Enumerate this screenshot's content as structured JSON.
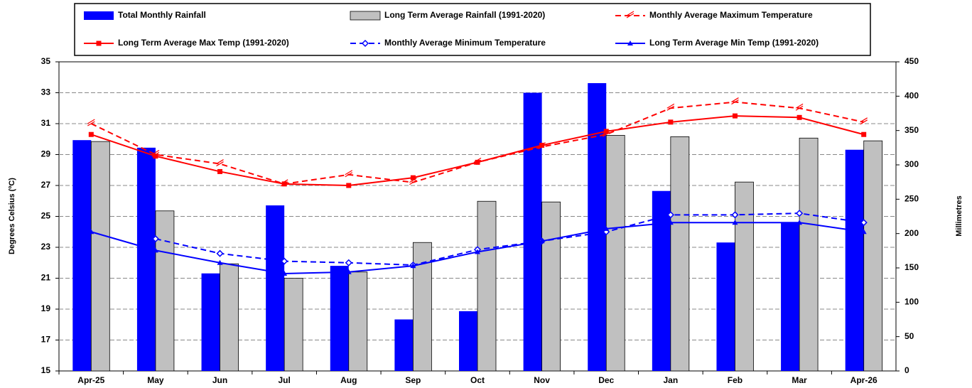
{
  "chart_data": {
    "type": "bar_line",
    "categories": [
      "Apr-25",
      "May",
      "Jun",
      "Jul",
      "Aug",
      "Sep",
      "Oct",
      "Nov",
      "Dec",
      "Jan",
      "Feb",
      "Mar",
      "Apr-26"
    ],
    "y_label": "Degrees Celsius (ºC)",
    "y2_label": "Millimetres",
    "ylim": [
      15,
      35
    ],
    "yticks": [
      15,
      17,
      19,
      21,
      23,
      25,
      27,
      29,
      31,
      33,
      35
    ],
    "y2lim": [
      0,
      450
    ],
    "y2ticks": [
      0,
      50,
      100,
      150,
      200,
      250,
      300,
      350,
      400,
      450
    ],
    "grid": true,
    "series": [
      {
        "name": "Total Monthly Rainfall",
        "kind": "bar",
        "axis": "y2",
        "color": "#0000ff",
        "values": [
          336,
          325,
          142,
          241,
          153,
          75,
          87,
          405,
          419,
          262,
          187,
          216,
          322
        ]
      },
      {
        "name": "Long Term Average Rainfall (1991-2020)",
        "kind": "bar",
        "axis": "y2",
        "color": "#c0c0c0",
        "values": [
          334,
          233,
          156,
          135,
          144,
          187,
          247,
          246,
          343,
          341,
          275,
          339,
          335
        ]
      },
      {
        "name": "Monthly Average Maximum Temperature",
        "kind": "line",
        "axis": "y",
        "color": "#ff0000",
        "dashed": true,
        "marker": "dash",
        "values": [
          31.0,
          29.0,
          28.4,
          27.1,
          27.7,
          27.2,
          28.5,
          29.5,
          30.3,
          32.0,
          32.4,
          32.0,
          31.1
        ]
      },
      {
        "name": "Long Term Average Max Temp (1991-2020)",
        "kind": "line",
        "axis": "y",
        "color": "#ff0000",
        "dashed": false,
        "marker": "square",
        "values": [
          30.3,
          28.9,
          27.9,
          27.1,
          27.0,
          27.5,
          28.5,
          29.6,
          30.5,
          31.1,
          31.5,
          31.4,
          30.3
        ]
      },
      {
        "name": "Monthly Average Minimum Temperature",
        "kind": "line",
        "axis": "y",
        "color": "#0000ff",
        "dashed": true,
        "marker": "diamond",
        "values": [
          null,
          23.55,
          22.6,
          22.1,
          22.0,
          21.85,
          22.85,
          23.4,
          24.0,
          25.1,
          25.1,
          25.2,
          24.6
        ]
      },
      {
        "name": "Long Term Average Min Temp (1991-2020)",
        "kind": "line",
        "axis": "y",
        "color": "#0000ff",
        "dashed": false,
        "marker": "triangle",
        "values": [
          24.0,
          22.8,
          22.0,
          21.3,
          21.4,
          21.8,
          22.7,
          23.4,
          24.2,
          24.6,
          24.6,
          24.6,
          24.0
        ]
      }
    ]
  }
}
